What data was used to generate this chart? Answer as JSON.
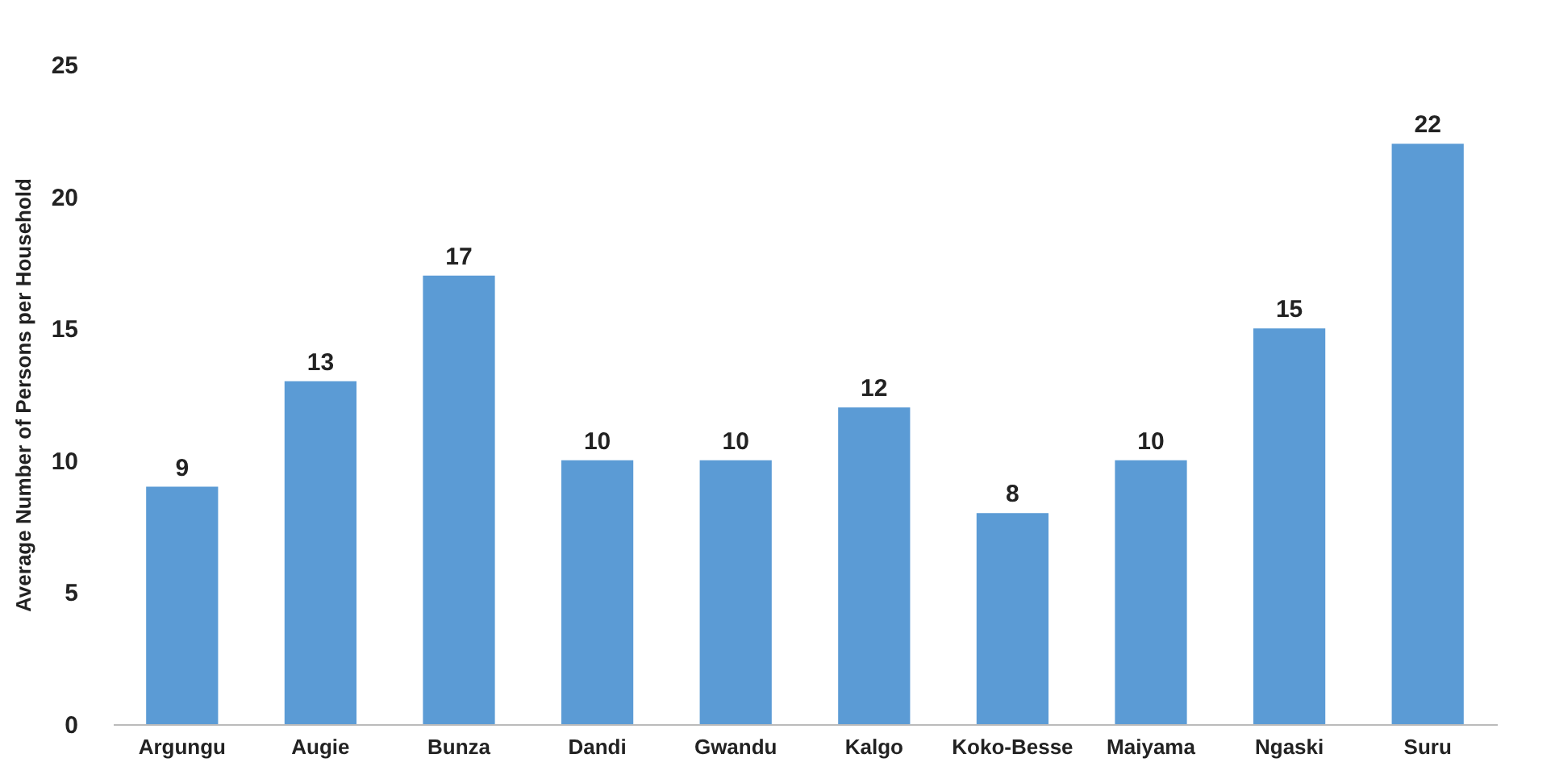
{
  "chart_data": {
    "type": "bar",
    "ylabel": "Average Number of Persons per Household",
    "categories": [
      "Argungu",
      "Augie",
      "Bunza",
      "Dandi",
      "Gwandu",
      "Kalgo",
      "Koko-Besse",
      "Maiyama",
      "Ngaski",
      "Suru"
    ],
    "values": [
      9,
      13,
      17,
      10,
      10,
      12,
      8,
      10,
      15,
      22
    ],
    "color": "#5b9bd5",
    "ylim": [
      0,
      25
    ],
    "yticks": [
      0,
      5,
      10,
      15,
      20,
      25
    ],
    "grid": false,
    "data_labels": true
  }
}
